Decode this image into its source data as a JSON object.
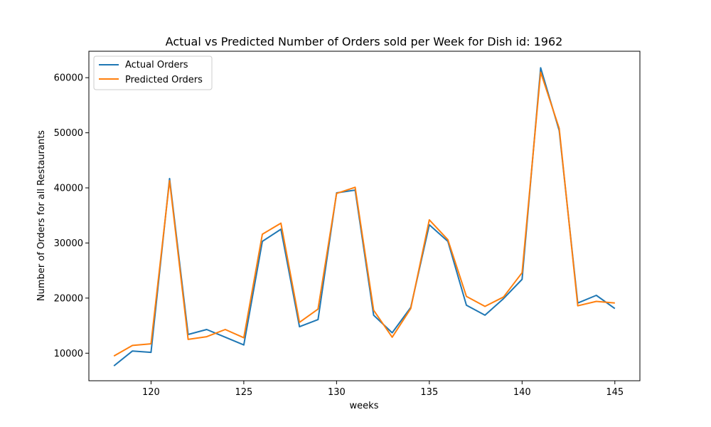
{
  "chart_data": {
    "type": "line",
    "title": "Actual vs Predicted Number of Orders sold per Week for Dish id: 1962",
    "xlabel": "weeks",
    "ylabel": "Number of Orders for all Restaurants",
    "xlim": [
      116.65,
      146.35
    ],
    "ylim": [
      5000,
      64800
    ],
    "xticks": [
      120,
      125,
      130,
      135,
      140,
      145
    ],
    "yticks": [
      10000,
      20000,
      30000,
      40000,
      50000,
      60000
    ],
    "grid": false,
    "legend_position": "top-left",
    "x": [
      118,
      119,
      120,
      121,
      122,
      123,
      124,
      125,
      126,
      127,
      128,
      129,
      130,
      131,
      132,
      133,
      134,
      135,
      136,
      137,
      138,
      139,
      140,
      141,
      142,
      143,
      144,
      145
    ],
    "series": [
      {
        "name": "Actual Orders",
        "color": "#1f77b4",
        "values": [
          7700,
          10400,
          10150,
          41700,
          13400,
          14300,
          12900,
          11500,
          30300,
          32500,
          14800,
          16100,
          39100,
          39600,
          16900,
          13700,
          18300,
          33300,
          30300,
          18700,
          16900,
          19900,
          23400,
          61800,
          50400,
          19100,
          20500,
          18100
        ]
      },
      {
        "name": "Predicted Orders",
        "color": "#ff7f0e",
        "values": [
          9500,
          11400,
          11700,
          41300,
          12500,
          13000,
          14300,
          12800,
          31600,
          33600,
          15600,
          18000,
          39000,
          40100,
          17800,
          12900,
          18100,
          34200,
          30600,
          20300,
          18500,
          20200,
          24600,
          61000,
          50800,
          18600,
          19400,
          19100
        ]
      }
    ]
  }
}
